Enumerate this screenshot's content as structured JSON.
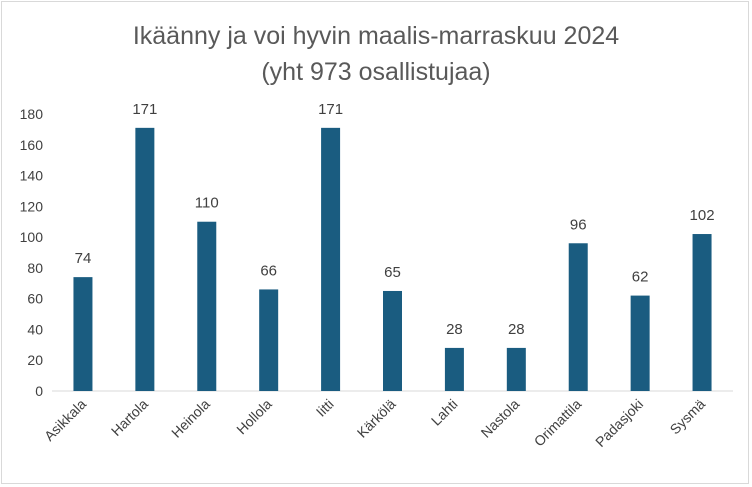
{
  "chart_data": {
    "type": "bar",
    "title_line1": "Ikäänny ja voi hyvin maalis-marraskuu 2024",
    "title_line2": "(yht 973 osallistujaa)",
    "categories": [
      "Asikkala",
      "Hartola",
      "Heinola",
      "Hollola",
      "Iitti",
      "Kärkölä",
      "Lahti",
      "Nastola",
      "Orimattila",
      "Padasjoki",
      "Sysmä"
    ],
    "values": [
      74,
      171,
      110,
      66,
      171,
      65,
      28,
      28,
      96,
      62,
      102
    ],
    "yticks": [
      0,
      20,
      40,
      60,
      80,
      100,
      120,
      140,
      160,
      180
    ],
    "ylim": [
      0,
      180
    ],
    "grid": false,
    "bar_color": "#1a5c80",
    "label_color": "#404040",
    "axis_color": "#d9d9d9"
  }
}
